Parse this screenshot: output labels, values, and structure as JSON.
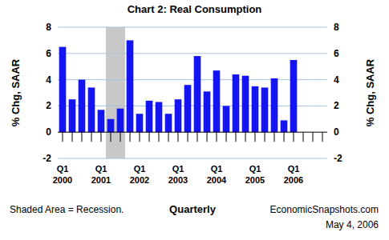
{
  "chart_data": {
    "type": "bar",
    "title": "Chart 2: Real Consumption",
    "categories": [
      "Q1 2000",
      null,
      null,
      null,
      "Q1 2001",
      null,
      null,
      null,
      "Q1 2002",
      null,
      null,
      null,
      "Q1 2003",
      null,
      null,
      null,
      "Q1 2004",
      null,
      null,
      null,
      "Q1 2005",
      null,
      null,
      null,
      "Q1 2006",
      null,
      null,
      null
    ],
    "values": [
      6.5,
      2.5,
      4.0,
      3.4,
      1.7,
      1.0,
      1.8,
      7.0,
      1.4,
      2.4,
      2.3,
      1.4,
      2.5,
      3.6,
      5.8,
      3.1,
      4.7,
      2.0,
      4.4,
      4.3,
      3.5,
      3.4,
      4.1,
      0.9,
      5.5,
      null,
      null,
      null
    ],
    "color": "#1414ee",
    "ylim": [
      -2,
      8
    ],
    "yticks": [
      -2,
      0,
      2,
      4,
      6,
      8
    ],
    "y2lim": [
      -2,
      8
    ],
    "y2ticks": [
      -2,
      0,
      2,
      4,
      6,
      8
    ],
    "y_label": "% Chg, SAAR",
    "y2_label": "% Chg, SAAR",
    "x_label": "Quarterly",
    "grid": true,
    "recession": {
      "start_index": 5,
      "end_index": 6,
      "label": "Shaded Area = Recession."
    },
    "source": "EconomicSnapshots.com",
    "date": "May 4, 2006"
  }
}
